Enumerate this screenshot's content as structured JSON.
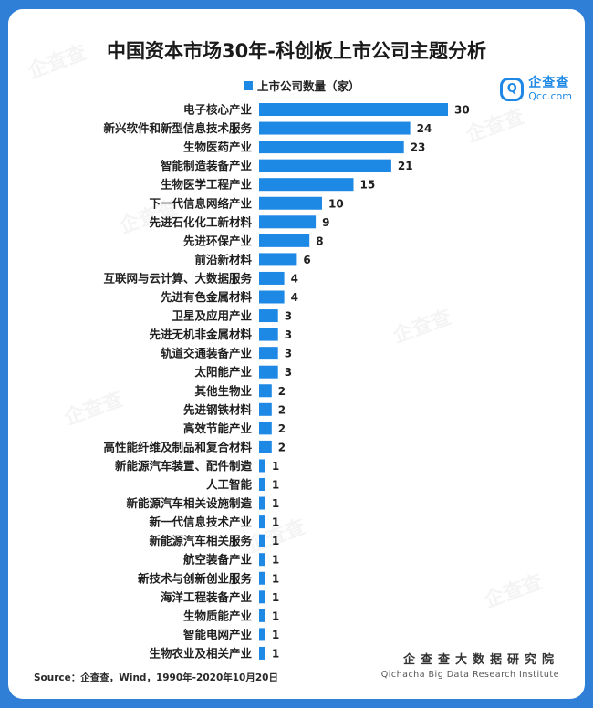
{
  "header": {
    "title": "中国资本市场30年-科创板上市公司主题分析",
    "legend_label": "上市公司数量（家）"
  },
  "brand": {
    "name": "企查查",
    "url": "Qcc.com",
    "watermark": "企查查"
  },
  "footer": {
    "source": "Source：企查查，Wind，1990年-2020年10月20日",
    "org_name": "企查查大数据研究院",
    "org_en": "Qichacha Big Data Research Institute"
  },
  "colors": {
    "bar": "#1e88e5",
    "background": "#2f7fd6"
  },
  "chart_data": {
    "type": "bar",
    "orientation": "horizontal",
    "title": "中国资本市场30年-科创板上市公司主题分析",
    "legend": "上市公司数量（家）",
    "categories": [
      "电子核心产业",
      "新兴软件和新型信息技术服务",
      "生物医药产业",
      "智能制造装备产业",
      "生物医学工程产业",
      "下一代信息网络产业",
      "先进石化化工新材料",
      "先进环保产业",
      "前沿新材料",
      "互联网与云计算、大数据服务",
      "先进有色金属材料",
      "卫星及应用产业",
      "先进无机非金属材料",
      "轨道交通装备产业",
      "太阳能产业",
      "其他生物业",
      "先进钢铁材料",
      "高效节能产业",
      "高性能纤维及制品和复合材料",
      "新能源汽车装置、配件制造",
      "人工智能",
      "新能源汽车相关设施制造",
      "新一代信息技术产业",
      "新能源汽车相关服务",
      "航空装备产业",
      "新技术与创新创业服务",
      "海洋工程装备产业",
      "生物质能产业",
      "智能电网产业",
      "生物农业及相关产业"
    ],
    "values": [
      30,
      24,
      23,
      21,
      15,
      10,
      9,
      8,
      6,
      4,
      4,
      3,
      3,
      3,
      3,
      2,
      2,
      2,
      2,
      1,
      1,
      1,
      1,
      1,
      1,
      1,
      1,
      1,
      1,
      1
    ],
    "data_labels": true,
    "grid": false
  }
}
